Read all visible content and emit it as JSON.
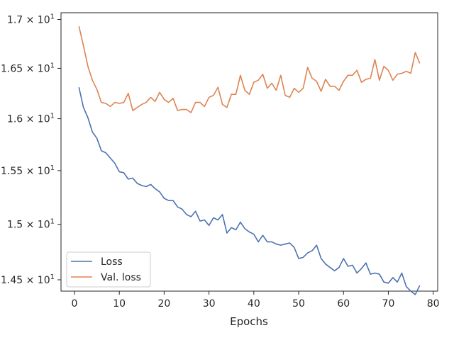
{
  "chart_data": {
    "type": "line",
    "title": "",
    "xlabel": "Epochs",
    "ylabel": "",
    "y_scale": "log",
    "grid": false,
    "legend_position": "lower-left",
    "xlim": [
      -3,
      81
    ],
    "ylim": [
      14.4,
      17.07
    ],
    "x_ticks": [
      0,
      10,
      20,
      30,
      40,
      50,
      60,
      70,
      80
    ],
    "y_ticks": [
      {
        "value": 14.5,
        "label_base": "1.45",
        "label_mid": " × 10",
        "label_exp": "1"
      },
      {
        "value": 15.0,
        "label_base": "1.5",
        "label_mid": " × 10",
        "label_exp": "1"
      },
      {
        "value": 15.5,
        "label_base": "1.55",
        "label_mid": " × 10",
        "label_exp": "1"
      },
      {
        "value": 16.0,
        "label_base": "1.6",
        "label_mid": " × 10",
        "label_exp": "1"
      },
      {
        "value": 16.5,
        "label_base": "1.65",
        "label_mid": " × 10",
        "label_exp": "1"
      },
      {
        "value": 17.0,
        "label_base": "1.7",
        "label_mid": " × 10",
        "label_exp": "1"
      }
    ],
    "series": [
      {
        "name": "Loss",
        "color": "#4c72b0",
        "x": [
          1,
          2,
          3,
          4,
          5,
          6,
          7,
          8,
          9,
          10,
          11,
          12,
          13,
          14,
          15,
          16,
          17,
          18,
          19,
          20,
          21,
          22,
          23,
          24,
          25,
          26,
          27,
          28,
          29,
          30,
          31,
          32,
          33,
          34,
          35,
          36,
          37,
          38,
          39,
          40,
          41,
          42,
          43,
          44,
          45,
          46,
          47,
          48,
          49,
          50,
          51,
          52,
          53,
          54,
          55,
          56,
          57,
          58,
          59,
          60,
          61,
          62,
          63,
          64,
          65,
          66,
          67,
          68,
          69,
          70,
          71,
          72,
          73,
          74,
          75,
          76,
          77
        ],
        "values": [
          16.31,
          16.11,
          16.01,
          15.87,
          15.81,
          15.69,
          15.67,
          15.62,
          15.57,
          15.49,
          15.48,
          15.42,
          15.43,
          15.38,
          15.36,
          15.35,
          15.37,
          15.33,
          15.3,
          15.24,
          15.22,
          15.22,
          15.16,
          15.14,
          15.09,
          15.07,
          15.12,
          15.03,
          15.04,
          14.99,
          15.06,
          15.04,
          15.09,
          14.92,
          14.97,
          14.95,
          15.02,
          14.96,
          14.93,
          14.91,
          14.84,
          14.9,
          14.84,
          14.84,
          14.82,
          14.81,
          14.82,
          14.83,
          14.79,
          14.69,
          14.7,
          14.74,
          14.76,
          14.81,
          14.69,
          14.64,
          14.61,
          14.58,
          14.61,
          14.69,
          14.62,
          14.63,
          14.56,
          14.6,
          14.65,
          14.55,
          14.56,
          14.55,
          14.48,
          14.47,
          14.52,
          14.48,
          14.56,
          14.44,
          14.4,
          14.37,
          14.45
        ]
      },
      {
        "name": "Val. loss",
        "color": "#dd8452",
        "x": [
          1,
          2,
          3,
          4,
          5,
          6,
          7,
          8,
          9,
          10,
          11,
          12,
          13,
          14,
          15,
          16,
          17,
          18,
          19,
          20,
          21,
          22,
          23,
          24,
          25,
          26,
          27,
          28,
          29,
          30,
          31,
          32,
          33,
          34,
          35,
          36,
          37,
          38,
          39,
          40,
          41,
          42,
          43,
          44,
          45,
          46,
          47,
          48,
          49,
          50,
          51,
          52,
          53,
          54,
          55,
          56,
          57,
          58,
          59,
          60,
          61,
          62,
          63,
          64,
          65,
          66,
          67,
          68,
          69,
          70,
          71,
          72,
          73,
          74,
          75,
          76,
          77
        ],
        "values": [
          16.93,
          16.73,
          16.52,
          16.38,
          16.29,
          16.16,
          16.15,
          16.12,
          16.16,
          16.15,
          16.16,
          16.25,
          16.08,
          16.11,
          16.14,
          16.16,
          16.21,
          16.17,
          16.26,
          16.19,
          16.16,
          16.2,
          16.08,
          16.09,
          16.09,
          16.06,
          16.16,
          16.16,
          16.12,
          16.21,
          16.23,
          16.31,
          16.14,
          16.11,
          16.24,
          16.24,
          16.43,
          16.28,
          16.24,
          16.36,
          16.38,
          16.44,
          16.3,
          16.35,
          16.28,
          16.43,
          16.23,
          16.21,
          16.3,
          16.26,
          16.3,
          16.51,
          16.4,
          16.37,
          16.27,
          16.39,
          16.32,
          16.32,
          16.28,
          16.37,
          16.43,
          16.43,
          16.48,
          16.36,
          16.39,
          16.4,
          16.59,
          16.38,
          16.52,
          16.48,
          16.38,
          16.44,
          16.45,
          16.47,
          16.45,
          16.66,
          16.55
        ]
      }
    ]
  }
}
